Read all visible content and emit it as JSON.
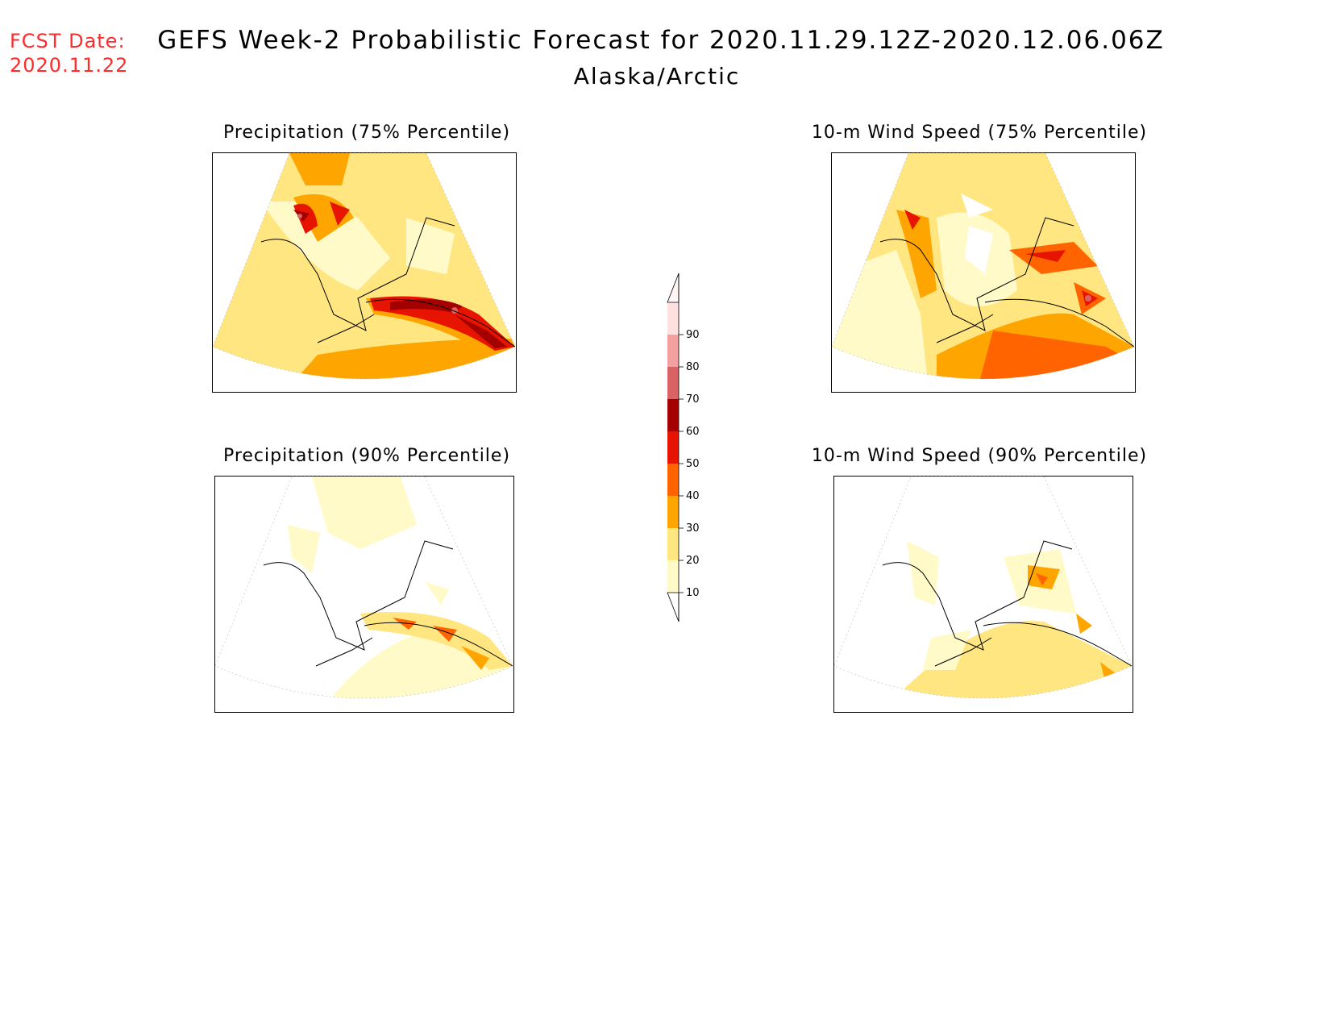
{
  "header": {
    "fcst_label": "FCST Date:",
    "fcst_date": "2020.11.22",
    "title": "GEFS Week-2 Probabilistic Forecast for 2020.11.29.12Z-2020.12.06.06Z",
    "subtitle": "Alaska/Arctic"
  },
  "panels": [
    {
      "id": "precip75",
      "title": "Precipitation (75% Percentile)"
    },
    {
      "id": "wind75",
      "title": "10-m Wind Speed (75% Percentile)"
    },
    {
      "id": "precip90",
      "title": "Precipitation (90% Percentile)"
    },
    {
      "id": "wind90",
      "title": "10-m Wind Speed (90% Percentile)"
    }
  ],
  "colorbar": {
    "levels": [
      "10",
      "20",
      "30",
      "40",
      "50",
      "60",
      "70",
      "80",
      "90"
    ],
    "colors": [
      "#fffac8",
      "#ffe680",
      "#ffa500",
      "#ff6400",
      "#e61400",
      "#a50000",
      "#d96262",
      "#f2a0a0",
      "#ffe0e0"
    ]
  }
}
